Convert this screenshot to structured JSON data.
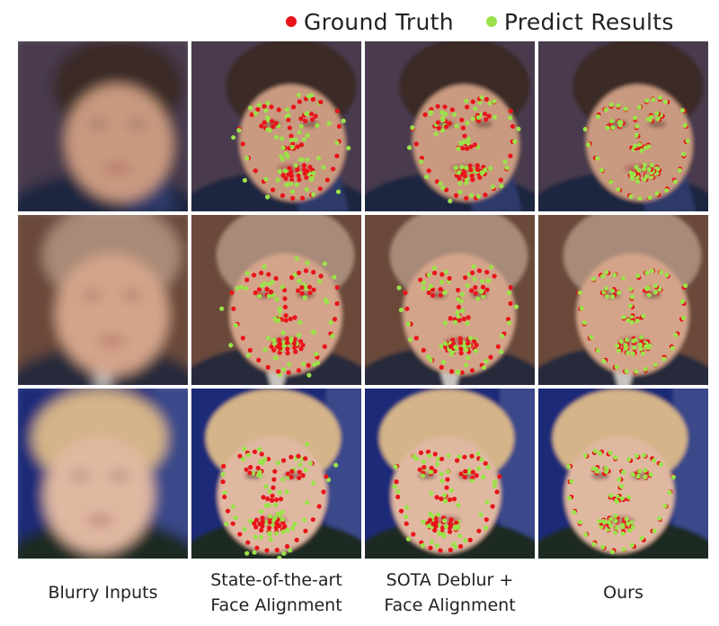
{
  "legend": {
    "items": [
      {
        "label": "Ground Truth",
        "color": "#e8141a"
      },
      {
        "label": "Predict Results",
        "color": "#9be24a"
      }
    ]
  },
  "columns": [
    {
      "id": "blurry",
      "caption_lines": [
        "Blurry Inputs"
      ],
      "landmarks": "none"
    },
    {
      "id": "sota_align",
      "caption_lines": [
        "State-of-the-art",
        "Face Alignment"
      ],
      "landmarks": "poor"
    },
    {
      "id": "sota_deblur",
      "caption_lines": [
        "SOTA Deblur +",
        "Face Alignment"
      ],
      "landmarks": "medium"
    },
    {
      "id": "ours",
      "caption_lines": [
        "Ours"
      ],
      "landmarks": "good"
    }
  ],
  "rows": [
    {
      "id": "man-dark-suit",
      "bg": "#4a3a4e",
      "skin": "#c99a80",
      "hair": "#3b2a28",
      "clothes": "#1f2840",
      "accent": "#2e3a6a"
    },
    {
      "id": "older-man-suit",
      "bg": "#6a4a3a",
      "skin": "#d4a48a",
      "hair": "#a88a78",
      "clothes": "#252a3a",
      "accent": "#c8c4c0"
    },
    {
      "id": "blonde-woman",
      "bg": "#1a2a78",
      "skin": "#e0b8a2",
      "hair": "#d4b488",
      "clothes": "#1e2a22",
      "accent": "#3a4a8a"
    }
  ]
}
